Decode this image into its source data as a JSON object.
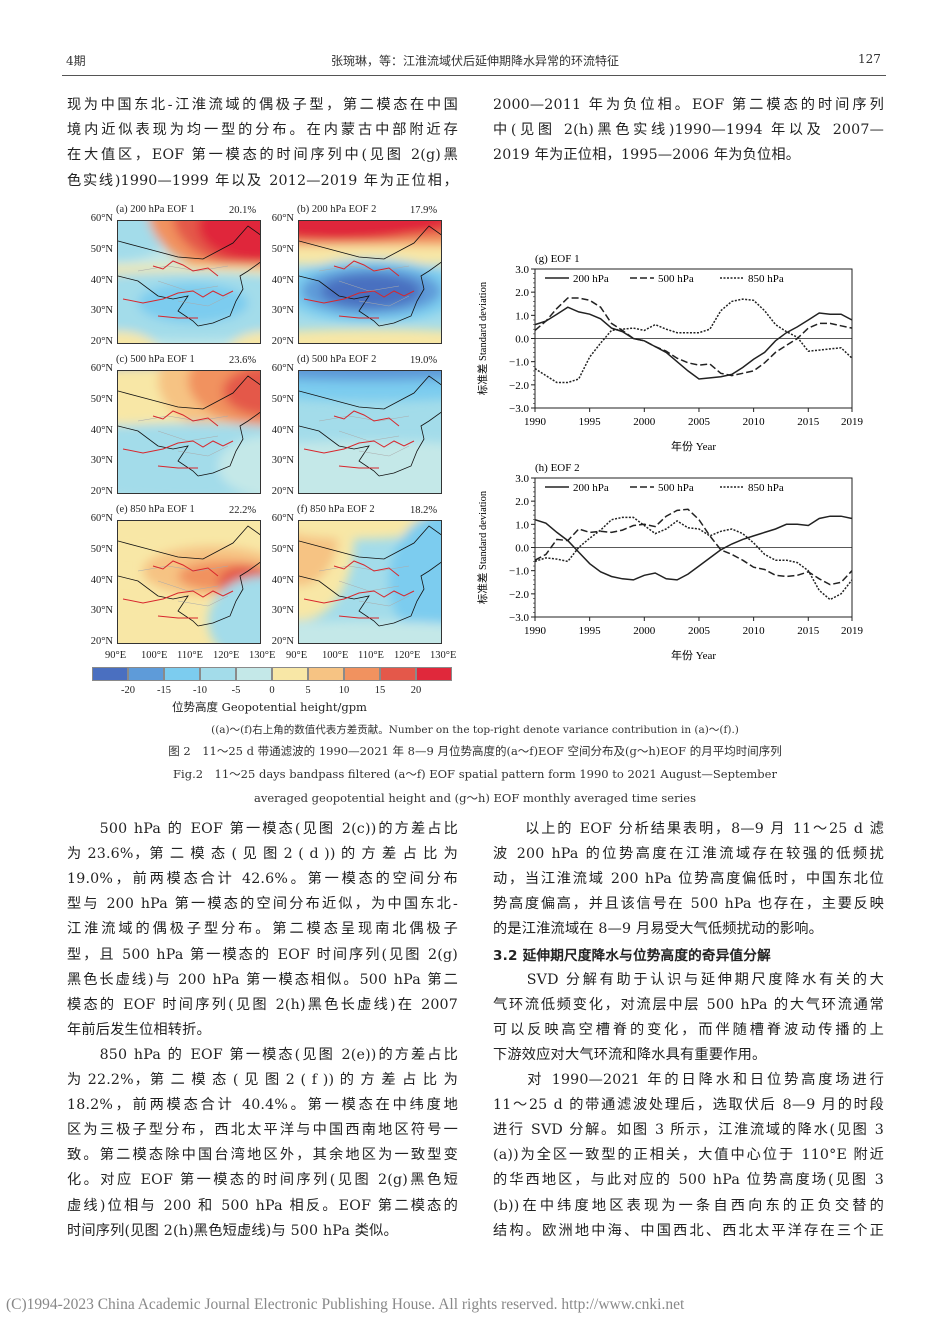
{
  "header": {
    "issue": "4期",
    "running_title": "张琬琳，等：江淮流域伏后延伸期降水异常的环流特征",
    "page_number": "127"
  },
  "top_left_lines": [
    "现为中国东北-江淮流域的偶极子型，第二模态在中国",
    "境内近似表现为均一型的分布。在内蒙古中部附近存",
    "在大值区，EOF 第一模态的时间序列中(见图 2(g)黑",
    "色实线)1990—1999 年以及 2012—2019 年为正位相，"
  ],
  "top_right_lines": [
    "2000—2011 年为负位相。EOF 第二模态的时间序列",
    "中(见图 2(h)黑色实线)1990—1994 年以及 2007—",
    "2019 年为正位相，1995—2006 年为负位相。"
  ],
  "maps": {
    "panels": [
      {
        "title": "(a) 200 hPa EOF 1",
        "variance": "20.1%"
      },
      {
        "title": "(b) 200 hPa EOF 2",
        "variance": "17.9%"
      },
      {
        "title": "(c) 500 hPa EOF 1",
        "variance": "23.6%"
      },
      {
        "title": "(d) 500 hPa EOF 2",
        "variance": "19.0%"
      },
      {
        "title": "(e) 850 hPa EOF 1",
        "variance": "22.2%"
      },
      {
        "title": "(f) 850 hPa EOF 2",
        "variance": "18.2%"
      }
    ],
    "lat_labels": [
      "60°N",
      "50°N",
      "40°N",
      "30°N",
      "20°N"
    ],
    "lon_labels": [
      "90°E",
      "100°E",
      "110°E",
      "120°E",
      "130°E"
    ],
    "colorbar": {
      "colors": [
        "#4a6fc0",
        "#5e9bd9",
        "#7cccef",
        "#a3dcea",
        "#c4e8e8",
        "#f8e7a6",
        "#f6c383",
        "#f1925f",
        "#e4584a",
        "#e0283b"
      ],
      "tick_labels": [
        "-20",
        "-15",
        "-10",
        "-5",
        "0",
        "5",
        "10",
        "15",
        "20"
      ],
      "label": "位势高度 Geopotential height/gpm"
    }
  },
  "chart_data": [
    {
      "type": "line",
      "title": "(g) EOF 1",
      "xlabel": "年份 Year",
      "ylabel": "标准差 Standard deviation",
      "xlim": [
        1990,
        2019
      ],
      "ylim": [
        -3.0,
        3.0
      ],
      "xticks": [
        "1990",
        "1995",
        "2000",
        "2005",
        "2010",
        "2015",
        "2019"
      ],
      "yticks": [
        "3.0",
        "2.0",
        "1.0",
        "0.0",
        "-1.0",
        "-2.0",
        "-3.0"
      ],
      "legend": "top",
      "x": [
        1990,
        1991,
        1992,
        1993,
        1994,
        1995,
        1996,
        1997,
        1998,
        1999,
        2000,
        2001,
        2002,
        2003,
        2004,
        2005,
        2006,
        2007,
        2008,
        2009,
        2010,
        2011,
        2012,
        2013,
        2014,
        2015,
        2016,
        2017,
        2018,
        2019
      ],
      "series": [
        {
          "name": "200 hPa",
          "style": "solid",
          "values": [
            0.6,
            0.75,
            1.05,
            1.35,
            1.15,
            1.05,
            0.85,
            0.45,
            0.3,
            0.0,
            -0.1,
            -0.35,
            -0.6,
            -1.0,
            -1.4,
            -1.75,
            -1.7,
            -1.65,
            -1.55,
            -1.25,
            -0.9,
            -0.6,
            -0.1,
            0.25,
            0.5,
            0.8,
            1.1,
            1.05,
            1.05,
            0.8
          ]
        },
        {
          "name": "500 hPa",
          "style": "dashed",
          "values": [
            0.35,
            0.75,
            1.3,
            1.75,
            1.75,
            1.65,
            1.35,
            0.65,
            0.35,
            0.0,
            -0.1,
            -0.35,
            -0.55,
            -0.85,
            -1.05,
            -1.15,
            -1.1,
            -1.5,
            -1.6,
            -1.5,
            -1.4,
            -1.05,
            -0.6,
            -0.3,
            0.0,
            0.45,
            0.65,
            0.65,
            0.55,
            0.45
          ]
        },
        {
          "name": "850 hPa",
          "style": "dotted",
          "values": [
            -1.3,
            -1.6,
            -1.9,
            -1.9,
            -1.75,
            -0.8,
            -0.2,
            0.35,
            0.4,
            0.45,
            0.35,
            0.6,
            0.4,
            0.25,
            0.25,
            0.25,
            0.4,
            1.2,
            1.6,
            1.7,
            1.65,
            1.2,
            0.6,
            0.3,
            0.05,
            -0.55,
            -0.5,
            -0.45,
            -0.4,
            -0.85
          ]
        }
      ]
    },
    {
      "type": "line",
      "title": "(h) EOF 2",
      "xlabel": "年份 Year",
      "ylabel": "标准差 Standard deviation",
      "xlim": [
        1990,
        2019
      ],
      "ylim": [
        -3.0,
        3.0
      ],
      "xticks": [
        "1990",
        "1995",
        "2000",
        "2005",
        "2010",
        "2015",
        "2019"
      ],
      "yticks": [
        "3.0",
        "2.0",
        "1.0",
        "0.0",
        "-1.0",
        "-2.0",
        "-3.0"
      ],
      "legend": "top",
      "x": [
        1990,
        1991,
        1992,
        1993,
        1994,
        1995,
        1996,
        1997,
        1998,
        1999,
        2000,
        2001,
        2002,
        2003,
        2004,
        2005,
        2006,
        2007,
        2008,
        2009,
        2010,
        2011,
        2012,
        2013,
        2014,
        2015,
        2016,
        2017,
        2018,
        2019
      ],
      "series": [
        {
          "name": "200 hPa",
          "style": "solid",
          "values": [
            1.2,
            1.05,
            0.65,
            0.3,
            -0.2,
            -0.7,
            -1.05,
            -1.25,
            -1.35,
            -1.4,
            -1.2,
            -1.1,
            -1.35,
            -1.4,
            -1.15,
            -0.8,
            -0.45,
            -0.1,
            0.15,
            0.35,
            0.5,
            0.65,
            0.8,
            1.0,
            1.0,
            0.95,
            1.25,
            1.35,
            1.35,
            1.25
          ]
        },
        {
          "name": "500 hPa",
          "style": "dashed",
          "values": [
            -0.55,
            -0.3,
            0.35,
            0.3,
            0.8,
            0.65,
            0.7,
            0.65,
            0.75,
            0.95,
            1.0,
            0.9,
            1.35,
            1.6,
            1.65,
            1.2,
            0.5,
            -0.1,
            -0.3,
            -0.55,
            -0.85,
            -0.95,
            -1.2,
            -1.25,
            -1.2,
            -1.05,
            -1.35,
            -1.6,
            -1.5,
            -1.0
          ]
        },
        {
          "name": "850 hPa",
          "style": "dotted",
          "values": [
            -0.6,
            -0.45,
            -0.5,
            -0.6,
            0.0,
            0.4,
            0.75,
            1.2,
            1.3,
            1.3,
            0.95,
            0.6,
            0.8,
            1.15,
            0.85,
            0.8,
            0.5,
            0.7,
            0.8,
            0.6,
            0.2,
            -0.3,
            -0.55,
            -0.55,
            -0.65,
            -1.0,
            -1.85,
            -2.25,
            -2.0,
            -1.4
          ]
        }
      ]
    }
  ],
  "figure_caption": {
    "note": "((a)～(f)右上角的数值代表方差贡献。Number on the top-right denote variance contribution in (a)～(f).)",
    "cn": "图 2　11～25 d 带通滤波的 1990—2021 年 8—9 月位势高度的(a～f)EOF 空间分布及(g～h)EOF 的月平均时间序列",
    "en_line1": "Fig.2　11～25 days bandpass filtered (a～f) EOF spatial pattern form 1990 to 2021 August—September",
    "en_line2": "averaged geopotential height and (g～h) EOF monthly averaged time series"
  },
  "bottom_left_lines": [
    "　　500 hPa 的 EOF 第一模态(见图 2(c))的方差占比",
    "为 23.6%，第 二 模 态 ( 见 图 2 ( d )) 的 方 差 占 比 为",
    "19.0%，前两模态合计 42.6%。第一模态的空间分布",
    "型与 200 hPa 第一模态的空间分布近似，为中国东北-",
    "江淮流域的偶极子型分布。第二模态呈现南北偶极子",
    "型，且 500 hPa 第一模态的 EOF 时间序列(见图 2(g)",
    "黑色长虚线)与 200 hPa 第一模态相似。500 hPa 第二",
    "模态的 EOF 时间序列(见图 2(h)黑色长虚线)在 2007",
    "年前后发生位相转折。",
    "　　850 hPa 的 EOF 第一模态(见图 2(e))的方差占比",
    "为 22.2%，第 二 模 态 ( 见 图 2 ( f )) 的 方 差 占 比 为",
    "18.2%，前两模态合计 40.4%。第一模态在中纬度地",
    "区为三极子型分布，西北太平洋与中国西南地区符号一",
    "致。第二模态除中国台湾地区外，其余地区为一致型变",
    "化。对应 EOF 第一模态的时间序列(见图 2(g)黑色短",
    "虚线)位相与 200 和 500 hPa 相反。EOF 第二模态的",
    "时间序列(见图 2(h)黑色短虚线)与 500 hPa 类似。"
  ],
  "bottom_right_lines": [
    "　　以上的 EOF 分析结果表明，8—9 月 11～25 d 滤",
    "波 200 hPa 的位势高度在江淮流域存在较强的低频扰",
    "动，当江淮流域 200 hPa 位势高度偏低时，中国东北位",
    "势高度偏高，并且该信号在 500 hPa 也存在，主要反映",
    "的是江淮流域在 8—9 月易受大气低频扰动的影响。",
    "3.2 延伸期尺度降水与位势高度的奇异值分解",
    "　　SVD 分解有助于认识与延伸期尺度降水有关的大",
    "气环流低频变化，对流层中层 500 hPa 的大气环流通常",
    "可以反映高空槽脊的变化，而伴随槽脊波动传播的上",
    "下游效应对大气环流和降水具有重要作用。",
    "　　对 1990—2021 年的日降水和日位势高度场进行",
    "11～25 d 的带通滤波处理后，选取伏后 8—9 月的时段",
    "进行 SVD 分解。如图 3 所示，江淮流域的降水(见图 3",
    "(a))为全区一致型的正相关，大值中心位于 110°E 附近",
    "的华西地区，与此对应的 500 hPa 位势高度场(见图 3",
    "(b))在中纬度地区表现为一条自西向东的正负交替的",
    "结构。欧洲地中海、中国西北、西北太平洋存在三个正"
  ],
  "footer": {
    "copyright": "(C)1994-2023 China Academic Journal Electronic Publishing House. All rights reserved.    http://www.cnki.net"
  }
}
